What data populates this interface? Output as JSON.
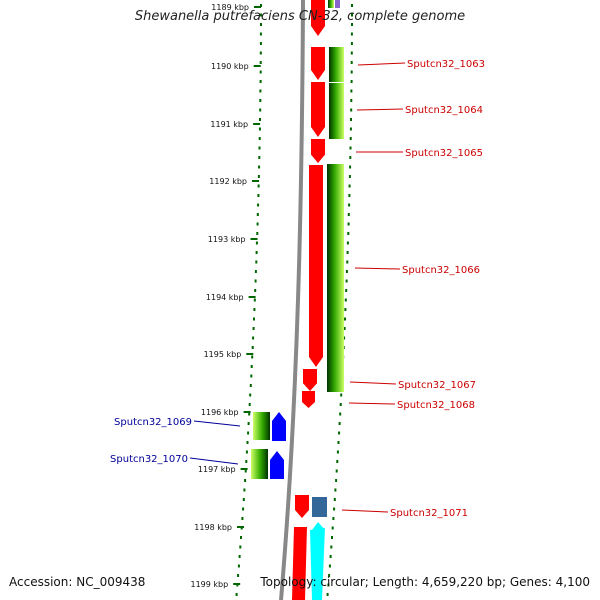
{
  "title": "Shewanella putrefaciens CN-32, complete genome",
  "footer": {
    "accession": "Accession: NC_009438",
    "summary": "Topology: circular; Length: 4,659,220 bp; Genes: 4,100"
  },
  "colors": {
    "forward_gene": "#ff0000",
    "reverse_gene": "#0000ff",
    "forward_label": "#cc0000",
    "reverse_label": "#000099",
    "tick": "#006600",
    "backbone": "#888888",
    "cds_gradient": [
      "#003300",
      "#33aa00",
      "#ccff66"
    ],
    "cyan_track": "#00ffff",
    "slate_gene": "#336699"
  },
  "ruler": {
    "ticks": [
      {
        "label": "1189 kbp"
      },
      {
        "label": "1190 kbp"
      },
      {
        "label": "1191 kbp"
      },
      {
        "label": "1192 kbp"
      },
      {
        "label": "1193 kbp"
      },
      {
        "label": "1194 kbp"
      },
      {
        "label": "1195 kbp"
      },
      {
        "label": "1196 kbp"
      },
      {
        "label": "1197 kbp"
      },
      {
        "label": "1198 kbp"
      },
      {
        "label": "1199 kbp"
      }
    ]
  },
  "genes": [
    {
      "label": "Sputcn32_1063",
      "strand": "forward"
    },
    {
      "label": "Sputcn32_1064",
      "strand": "forward"
    },
    {
      "label": "Sputcn32_1065",
      "strand": "forward"
    },
    {
      "label": "Sputcn32_1066",
      "strand": "forward"
    },
    {
      "label": "Sputcn32_1067",
      "strand": "forward"
    },
    {
      "label": "Sputcn32_1068",
      "strand": "forward"
    },
    {
      "label": "Sputcn32_1069",
      "strand": "reverse"
    },
    {
      "label": "Sputcn32_1070",
      "strand": "reverse"
    },
    {
      "label": "Sputcn32_1071",
      "strand": "forward"
    }
  ]
}
